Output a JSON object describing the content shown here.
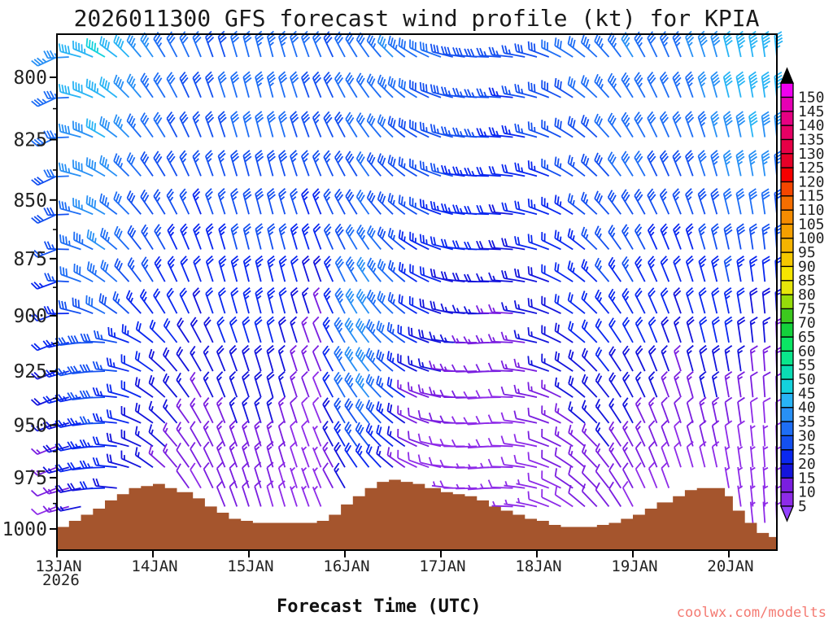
{
  "title": "2026011300 GFS forecast wind profile (kt) for KPIA",
  "x_axis_title": "Forecast Time (UTC)",
  "watermark": {
    "text": "coolwx.com/modelts",
    "color": "#f47a72"
  },
  "chart_data": {
    "type": "wind_barb_time_height_cross_section",
    "model": "GFS",
    "init_time": "2026011300",
    "station": "KPIA",
    "units": "kt",
    "x_axis": {
      "ticks": [
        "13JAN",
        "14JAN",
        "15JAN",
        "16JAN",
        "17JAN",
        "18JAN",
        "19JAN",
        "20JAN"
      ],
      "year_label": "2026",
      "hours_range": [
        0,
        180
      ],
      "tick_interval_hours": 24
    },
    "y_axis": {
      "label_implied": "pressure_hPa",
      "ticks": [
        800,
        825,
        850,
        875,
        900,
        925,
        950,
        975,
        1000
      ],
      "scale": "log-pressure",
      "top_hPa": 783,
      "bottom_hPa": 1010
    },
    "colorbar": {
      "tick_values": [
        5,
        10,
        15,
        20,
        25,
        30,
        35,
        40,
        45,
        50,
        55,
        60,
        65,
        70,
        75,
        80,
        85,
        90,
        95,
        100,
        105,
        110,
        115,
        120,
        125,
        130,
        135,
        140,
        145,
        150
      ],
      "interval_colors": [
        "#8e2be8",
        "#7a1ee0",
        "#1414dc",
        "#0a28f0",
        "#1450f0",
        "#1e6ef5",
        "#2890f5",
        "#28b4f5",
        "#14d2dc",
        "#0adcb4",
        "#0ae68c",
        "#0ae664",
        "#14d23c",
        "#3cc81e",
        "#96dc0a",
        "#e6e60a",
        "#f5e600",
        "#f5c800",
        "#f5b400",
        "#f5a000",
        "#f58c00",
        "#f56e00",
        "#f54600",
        "#f50000",
        "#e60028",
        "#e60046",
        "#e60064",
        "#e60082",
        "#e600b4",
        "#f000f0"
      ],
      "under_arrow_color": "#9340ff",
      "over_arrow_color": "#000000"
    },
    "terrain_color": "#a5552d",
    "terrain_profile_hour_pressure": [
      [
        0,
        999
      ],
      [
        3,
        996
      ],
      [
        6,
        993
      ],
      [
        9,
        990
      ],
      [
        12,
        986
      ],
      [
        15,
        983
      ],
      [
        18,
        980
      ],
      [
        21,
        979
      ],
      [
        24,
        978
      ],
      [
        27,
        980
      ],
      [
        30,
        982
      ],
      [
        34,
        985
      ],
      [
        37,
        989
      ],
      [
        40,
        992
      ],
      [
        43,
        995
      ],
      [
        46,
        996
      ],
      [
        49,
        997
      ],
      [
        53,
        997
      ],
      [
        57,
        997
      ],
      [
        61,
        997
      ],
      [
        65,
        996
      ],
      [
        68,
        993
      ],
      [
        71,
        988
      ],
      [
        74,
        984
      ],
      [
        77,
        980
      ],
      [
        80,
        977
      ],
      [
        83,
        976
      ],
      [
        86,
        977
      ],
      [
        89,
        978
      ],
      [
        92,
        980
      ],
      [
        96,
        982
      ],
      [
        99,
        983
      ],
      [
        102,
        984
      ],
      [
        105,
        986
      ],
      [
        108,
        989
      ],
      [
        111,
        991
      ],
      [
        114,
        993
      ],
      [
        117,
        995
      ],
      [
        120,
        996
      ],
      [
        123,
        998
      ],
      [
        126,
        999
      ],
      [
        129,
        999
      ],
      [
        132,
        999
      ],
      [
        135,
        998
      ],
      [
        138,
        997
      ],
      [
        141,
        995
      ],
      [
        144,
        993
      ],
      [
        147,
        990
      ],
      [
        150,
        987
      ],
      [
        154,
        984
      ],
      [
        157,
        981
      ],
      [
        160,
        980
      ],
      [
        163,
        980
      ],
      [
        165,
        980
      ],
      [
        167,
        984
      ],
      [
        169,
        991
      ],
      [
        172,
        997
      ],
      [
        175,
        1002
      ],
      [
        178,
        1004
      ],
      [
        180,
        1005
      ]
    ],
    "data_hours_step": 6,
    "data_hours_count": 31,
    "direction_profiles_deg_from": {
      "upper": [
        245,
        285,
        300,
        315,
        325,
        332,
        338,
        342,
        345,
        345,
        342,
        338,
        332,
        325,
        315,
        302,
        290,
        278,
        272,
        276,
        285,
        296,
        308,
        318,
        328,
        334,
        338,
        342,
        346,
        350,
        354
      ],
      "mid": [
        250,
        290,
        305,
        318,
        328,
        335,
        340,
        344,
        346,
        346,
        344,
        340,
        334,
        326,
        315,
        303,
        290,
        277,
        270,
        274,
        284,
        296,
        308,
        320,
        330,
        336,
        340,
        344,
        348,
        352,
        356
      ],
      "low": [
        248,
        258,
        268,
        285,
        305,
        320,
        330,
        338,
        342,
        344,
        342,
        338,
        330,
        322,
        310,
        296,
        283,
        270,
        266,
        272,
        282,
        296,
        310,
        322,
        332,
        338,
        342,
        346,
        350,
        354,
        358
      ]
    },
    "levels": [
      {
        "hPa": 795,
        "dir_profile": "upper",
        "speeds_kt": [
          35,
          42,
          45,
          40,
          35,
          32,
          30,
          30,
          32,
          35,
          32,
          30,
          30,
          32,
          35,
          32,
          30,
          28,
          28,
          26,
          28,
          30,
          32,
          34,
          35,
          32,
          34,
          38,
          42,
          44,
          45
        ]
      },
      {
        "hPa": 815,
        "dir_profile": "upper",
        "speeds_kt": [
          32,
          40,
          42,
          38,
          32,
          30,
          28,
          30,
          32,
          32,
          30,
          28,
          30,
          32,
          32,
          30,
          28,
          26,
          26,
          24,
          26,
          28,
          30,
          32,
          34,
          32,
          32,
          36,
          40,
          42,
          42
        ]
      },
      {
        "hPa": 835,
        "dir_profile": "upper",
        "speeds_kt": [
          30,
          38,
          40,
          35,
          30,
          28,
          26,
          28,
          30,
          30,
          28,
          26,
          28,
          30,
          30,
          28,
          26,
          25,
          24,
          22,
          24,
          26,
          28,
          30,
          32,
          30,
          28,
          32,
          36,
          38,
          36
        ]
      },
      {
        "hPa": 855,
        "dir_profile": "upper",
        "speeds_kt": [
          28,
          35,
          38,
          32,
          28,
          26,
          25,
          26,
          28,
          28,
          26,
          24,
          28,
          30,
          28,
          26,
          25,
          24,
          22,
          20,
          22,
          24,
          26,
          28,
          30,
          28,
          26,
          28,
          32,
          32,
          30
        ]
      },
      {
        "hPa": 875,
        "dir_profile": "mid",
        "speeds_kt": [
          25,
          32,
          35,
          30,
          26,
          24,
          22,
          24,
          26,
          26,
          24,
          20,
          30,
          35,
          30,
          24,
          22,
          20,
          20,
          18,
          20,
          22,
          24,
          26,
          26,
          24,
          22,
          25,
          28,
          26,
          24
        ]
      },
      {
        "hPa": 895,
        "dir_profile": "mid",
        "speeds_kt": [
          22,
          30,
          32,
          28,
          24,
          22,
          20,
          22,
          24,
          24,
          20,
          15,
          32,
          38,
          32,
          22,
          20,
          18,
          16,
          15,
          18,
          20,
          22,
          24,
          24,
          22,
          20,
          22,
          24,
          20,
          18
        ]
      },
      {
        "hPa": 915,
        "dir_profile": "low",
        "speeds_kt": [
          20,
          28,
          30,
          25,
          22,
          20,
          18,
          20,
          20,
          20,
          16,
          12,
          35,
          40,
          30,
          20,
          18,
          15,
          13,
          13,
          15,
          18,
          20,
          22,
          20,
          20,
          16,
          20,
          20,
          15,
          14
        ]
      },
      {
        "hPa": 935,
        "dir_profile": "low",
        "speeds_kt": [
          18,
          25,
          28,
          22,
          20,
          18,
          15,
          16,
          18,
          18,
          13,
          10,
          32,
          38,
          28,
          15,
          15,
          12,
          10,
          10,
          13,
          15,
          18,
          20,
          18,
          16,
          13,
          16,
          15,
          12,
          12
        ]
      },
      {
        "hPa": 955,
        "dir_profile": "low",
        "speeds_kt": [
          15,
          22,
          25,
          20,
          18,
          15,
          13,
          14,
          15,
          15,
          10,
          8,
          25,
          30,
          22,
          12,
          10,
          10,
          8,
          8,
          10,
          13,
          15,
          16,
          15,
          13,
          10,
          13,
          10,
          8,
          8
        ]
      },
      {
        "hPa": 975,
        "dir_profile": "low",
        "speeds_kt": [
          12,
          20,
          22,
          18,
          15,
          12,
          10,
          12,
          13,
          12,
          8,
          6,
          18,
          22,
          15,
          8,
          8,
          8,
          6,
          8,
          8,
          10,
          12,
          13,
          12,
          10,
          8,
          8,
          6,
          6,
          6
        ]
      },
      {
        "hPa": 995,
        "dir_profile": "low",
        "speeds_kt": [
          8,
          15,
          18,
          13,
          12,
          10,
          8,
          10,
          10,
          8,
          6,
          5,
          10,
          12,
          8,
          6,
          5,
          6,
          5,
          6,
          6,
          8,
          10,
          10,
          8,
          6,
          5,
          5,
          5,
          5,
          5
        ]
      }
    ],
    "render": {
      "display_time_step_hours": 3,
      "display_levels_hPa": [
        792,
        808,
        824,
        840,
        856,
        871,
        885,
        899,
        912,
        925,
        937,
        949,
        960,
        970,
        980,
        989,
        997,
        1004
      ]
    }
  }
}
